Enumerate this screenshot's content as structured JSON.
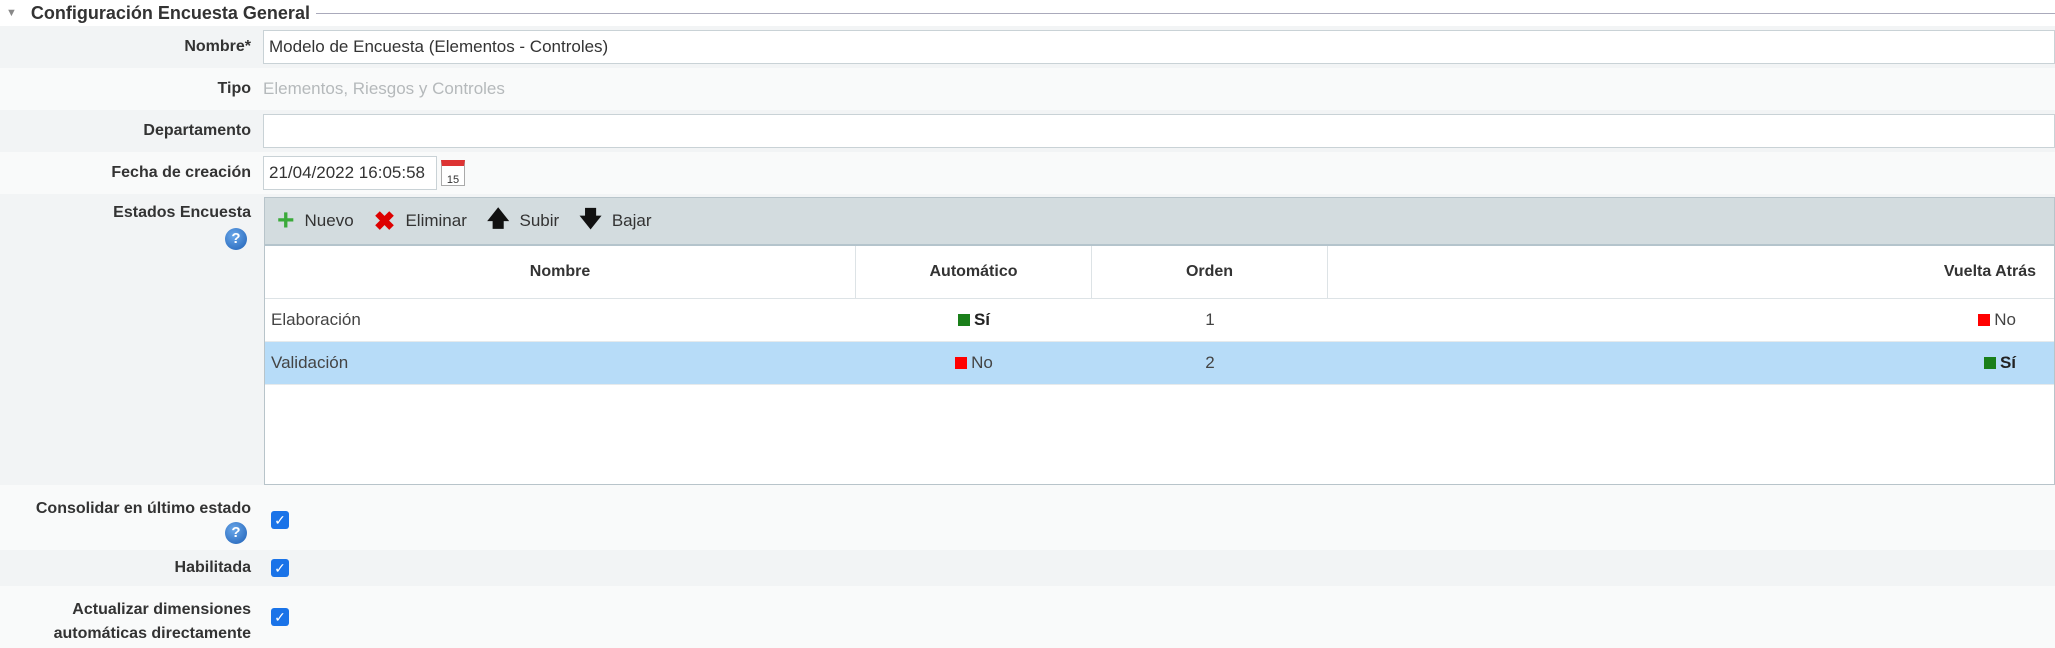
{
  "section": {
    "title": "Configuración Encuesta General"
  },
  "fields": {
    "nombre": {
      "label": "Nombre*",
      "value": "Modelo de Encuesta (Elementos - Controles)"
    },
    "tipo": {
      "label": "Tipo",
      "value": "Elementos, Riesgos y Controles"
    },
    "departamento": {
      "label": "Departamento",
      "value": ""
    },
    "fecha": {
      "label": "Fecha de creación",
      "value": "21/04/2022 16:05:58",
      "calendar_day": "15"
    },
    "estados": {
      "label": "Estados Encuesta"
    },
    "consolidar": {
      "label": "Consolidar en último estado",
      "checked": true
    },
    "habilitada": {
      "label": "Habilitada",
      "checked": true
    },
    "actualizar": {
      "label1": "Actualizar dimensiones",
      "label2": "automáticas directamente",
      "checked": true
    }
  },
  "toolbar": {
    "nuevo": "Nuevo",
    "eliminar": "Eliminar",
    "subir": "Subir",
    "bajar": "Bajar"
  },
  "table": {
    "columns": [
      "Nombre",
      "Automático",
      "Orden",
      "Vuelta Atrás"
    ],
    "rows": [
      {
        "nombre": "Elaboración",
        "automatico": "Sí",
        "orden": "1",
        "vuelta": "No",
        "selected": false
      },
      {
        "nombre": "Validación",
        "automatico": "No",
        "orden": "2",
        "vuelta": "Sí",
        "selected": true
      }
    ]
  },
  "colors": {
    "yes": "#1a7f1a",
    "no": "#ff0000",
    "selected_row": "#b7dcf8",
    "toolbar": "#d3dcdf"
  }
}
